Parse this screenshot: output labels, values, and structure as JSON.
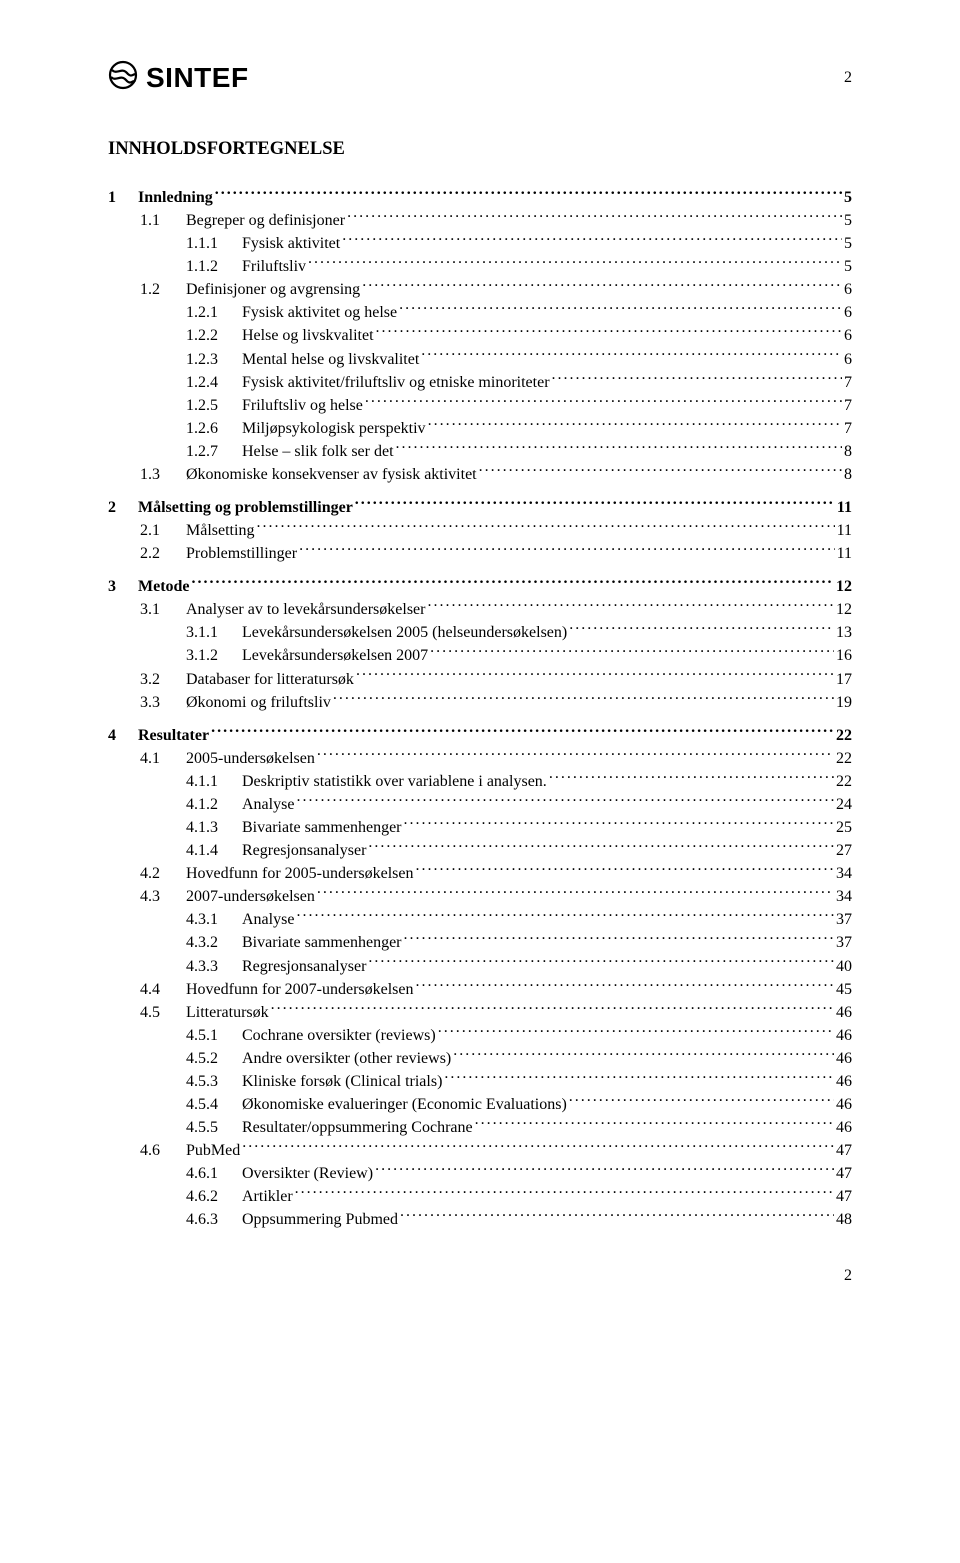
{
  "brand": "SINTEF",
  "page_number_top": "2",
  "page_number_bottom": "2",
  "title": "INNHOLDSFORTEGNELSE",
  "toc": [
    {
      "lvl": 1,
      "num": "1",
      "title": "Innledning",
      "page": "5"
    },
    {
      "lvl": 2,
      "num": "1.1",
      "title": "Begreper og definisjoner",
      "page": "5"
    },
    {
      "lvl": 3,
      "num": "1.1.1",
      "title": "Fysisk aktivitet",
      "page": "5"
    },
    {
      "lvl": 3,
      "num": "1.1.2",
      "title": "Friluftsliv",
      "page": "5"
    },
    {
      "lvl": 2,
      "num": "1.2",
      "title": "Definisjoner og avgrensing",
      "page": "6"
    },
    {
      "lvl": 3,
      "num": "1.2.1",
      "title": "Fysisk aktivitet og helse",
      "page": "6"
    },
    {
      "lvl": 3,
      "num": "1.2.2",
      "title": "Helse og livskvalitet",
      "page": "6"
    },
    {
      "lvl": 3,
      "num": "1.2.3",
      "title": "Mental helse og livskvalitet",
      "page": "6"
    },
    {
      "lvl": 3,
      "num": "1.2.4",
      "title": "Fysisk aktivitet/friluftsliv og etniske minoriteter",
      "page": "7"
    },
    {
      "lvl": 3,
      "num": "1.2.5",
      "title": "Friluftsliv og helse",
      "page": "7"
    },
    {
      "lvl": 3,
      "num": "1.2.6",
      "title": "Miljøpsykologisk perspektiv",
      "page": "7"
    },
    {
      "lvl": 3,
      "num": "1.2.7",
      "title": "Helse – slik folk ser det",
      "page": "8"
    },
    {
      "lvl": 2,
      "num": "1.3",
      "title": "Økonomiske konsekvenser av fysisk aktivitet",
      "page": "8"
    },
    {
      "lvl": 1,
      "num": "2",
      "title": "Målsetting og problemstillinger",
      "page": "11"
    },
    {
      "lvl": 2,
      "num": "2.1",
      "title": "Målsetting",
      "page": "11"
    },
    {
      "lvl": 2,
      "num": "2.2",
      "title": "Problemstillinger",
      "page": "11"
    },
    {
      "lvl": 1,
      "num": "3",
      "title": "Metode",
      "page": "12"
    },
    {
      "lvl": 2,
      "num": "3.1",
      "title": "Analyser av to levekårsundersøkelser",
      "page": "12"
    },
    {
      "lvl": 3,
      "num": "3.1.1",
      "title": "Levekårsundersøkelsen 2005 (helseundersøkelsen)",
      "page": "13"
    },
    {
      "lvl": 3,
      "num": "3.1.2",
      "title": "Levekårsundersøkelsen 2007",
      "page": "16"
    },
    {
      "lvl": 2,
      "num": "3.2",
      "title": "Databaser for litteratursøk",
      "page": "17"
    },
    {
      "lvl": 2,
      "num": "3.3",
      "title": "Økonomi og friluftsliv",
      "page": "19"
    },
    {
      "lvl": 1,
      "num": "4",
      "title": "Resultater",
      "page": "22"
    },
    {
      "lvl": 2,
      "num": "4.1",
      "title": "2005-undersøkelsen",
      "page": "22"
    },
    {
      "lvl": 3,
      "num": "4.1.1",
      "title": "Deskriptiv statistikk over variablene i analysen.",
      "page": "22"
    },
    {
      "lvl": 3,
      "num": "4.1.2",
      "title": "Analyse",
      "page": "24"
    },
    {
      "lvl": 3,
      "num": "4.1.3",
      "title": "Bivariate sammenhenger",
      "page": "25"
    },
    {
      "lvl": 3,
      "num": "4.1.4",
      "title": "Regresjonsanalyser",
      "page": "27"
    },
    {
      "lvl": 2,
      "num": "4.2",
      "title": "Hovedfunn for 2005-undersøkelsen",
      "page": "34"
    },
    {
      "lvl": 2,
      "num": "4.3",
      "title": "2007-undersøkelsen",
      "page": "34"
    },
    {
      "lvl": 3,
      "num": "4.3.1",
      "title": "Analyse",
      "page": "37"
    },
    {
      "lvl": 3,
      "num": "4.3.2",
      "title": "Bivariate sammenhenger",
      "page": "37"
    },
    {
      "lvl": 3,
      "num": "4.3.3",
      "title": "Regresjonsanalyser",
      "page": "40"
    },
    {
      "lvl": 2,
      "num": "4.4",
      "title": "Hovedfunn for 2007-undersøkelsen",
      "page": "45"
    },
    {
      "lvl": 2,
      "num": "4.5",
      "title": "Litteratursøk",
      "page": "46"
    },
    {
      "lvl": 3,
      "num": "4.5.1",
      "title": "Cochrane oversikter (reviews)",
      "page": "46"
    },
    {
      "lvl": 3,
      "num": "4.5.2",
      "title": "Andre oversikter (other reviews)",
      "page": "46"
    },
    {
      "lvl": 3,
      "num": "4.5.3",
      "title": "Kliniske forsøk (Clinical trials)",
      "page": "46"
    },
    {
      "lvl": 3,
      "num": "4.5.4",
      "title": "Økonomiske evalueringer (Economic Evaluations)",
      "page": "46"
    },
    {
      "lvl": 3,
      "num": "4.5.5",
      "title": "Resultater/oppsummering Cochrane",
      "page": "46"
    },
    {
      "lvl": 2,
      "num": "4.6",
      "title": "PubMed",
      "page": "47"
    },
    {
      "lvl": 3,
      "num": "4.6.1",
      "title": "Oversikter (Review)",
      "page": "47"
    },
    {
      "lvl": 3,
      "num": "4.6.2",
      "title": "Artikler",
      "page": "47"
    },
    {
      "lvl": 3,
      "num": "4.6.3",
      "title": "Oppsummering Pubmed",
      "page": "48"
    }
  ]
}
